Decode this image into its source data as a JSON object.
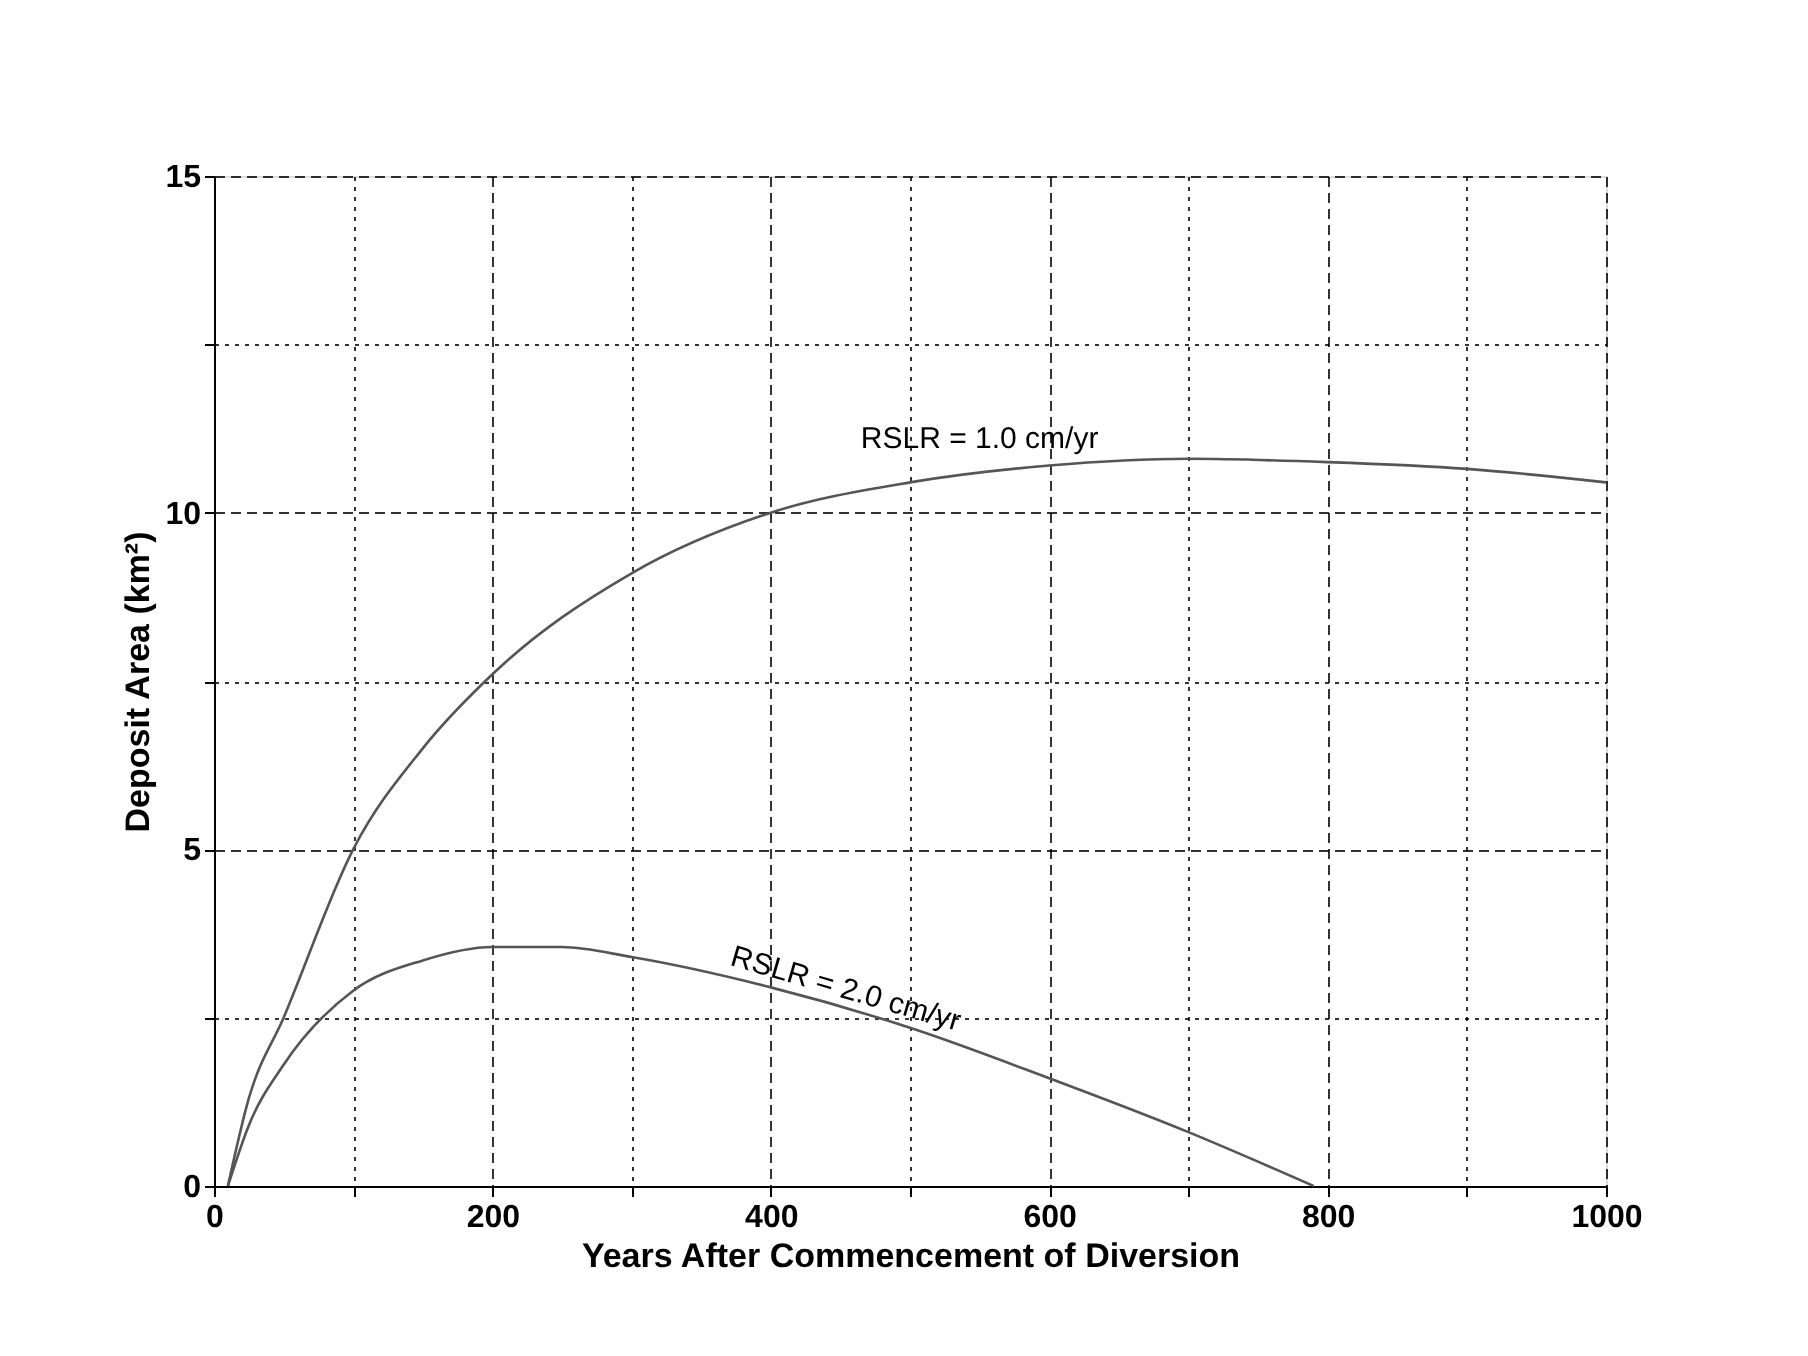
{
  "chart_data": {
    "type": "line",
    "xlabel": "Years After Commencement of Diversion",
    "ylabel": "Deposit Area (km²)",
    "xlim": [
      0,
      1000
    ],
    "ylim": [
      0,
      15
    ],
    "xticks": [
      0,
      {
        "value": 100,
        "label": null
      },
      200,
      {
        "value": 300,
        "label": null
      },
      400,
      {
        "value": 500,
        "label": null
      },
      600,
      {
        "value": 700,
        "label": null
      },
      800,
      {
        "value": 900,
        "label": null
      },
      1000
    ],
    "yticks": [
      0,
      {
        "value": 2.5,
        "label": null
      },
      5,
      {
        "value": 7.5,
        "label": null
      },
      10,
      {
        "value": 12.5,
        "label": null
      },
      15
    ],
    "grid": true,
    "legend": false,
    "marker": "none",
    "line_style": "solid",
    "series": [
      {
        "name": "RSLR = 1.0 cm/yr",
        "color": "#555555",
        "x": [
          10,
          25,
          50,
          100,
          150,
          200,
          300,
          400,
          500,
          600,
          700,
          800,
          900,
          1000
        ],
        "values": [
          0,
          1.3,
          2.5,
          5.0,
          6.5,
          7.6,
          9.1,
          10.0,
          10.45,
          10.7,
          10.8,
          10.75,
          10.65,
          10.45
        ]
      },
      {
        "name": "RSLR = 2.0 cm/yr",
        "color": "#555555",
        "x": [
          10,
          25,
          50,
          100,
          150,
          200,
          250,
          300,
          400,
          500,
          600,
          700,
          790
        ],
        "values": [
          0,
          0.9,
          1.8,
          2.9,
          3.35,
          3.55,
          3.55,
          3.4,
          2.95,
          2.35,
          1.6,
          0.8,
          0
        ]
      }
    ]
  }
}
